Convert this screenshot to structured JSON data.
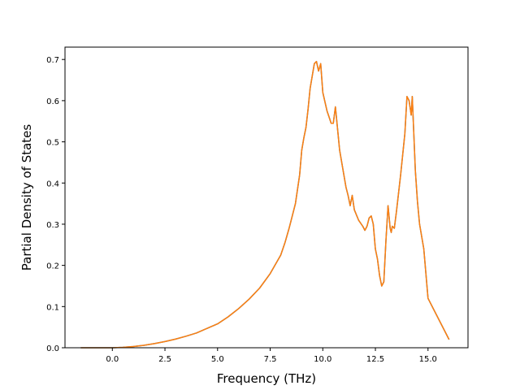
{
  "chart_data": {
    "type": "line",
    "title": "",
    "xlabel": "Frequency (THz)",
    "ylabel": "Partial Density of States",
    "xlim": [
      -2.25,
      16.9
    ],
    "ylim": [
      0.0,
      0.73
    ],
    "x_ticks": [
      "0.0",
      "2.5",
      "5.0",
      "7.5",
      "10.0",
      "12.5",
      "15.0"
    ],
    "y_ticks": [
      "0.0",
      "0.1",
      "0.2",
      "0.3",
      "0.4",
      "0.5",
      "0.6",
      "0.7"
    ],
    "grid": false,
    "legend": null,
    "colors": {
      "series": [
        "#1f77b4",
        "#ff7f0e"
      ]
    },
    "series": [
      {
        "x": [
          -1.5,
          0.0,
          0.5,
          1.0,
          1.5,
          2.0,
          2.5,
          3.0,
          3.5,
          4.0,
          4.5,
          5.0,
          5.5,
          6.0,
          6.5,
          7.0,
          7.5,
          8.0,
          8.2,
          8.4,
          8.5,
          8.7,
          8.9,
          9.0,
          9.1,
          9.2,
          9.3,
          9.4,
          9.5,
          9.6,
          9.7,
          9.8,
          9.9,
          10.0,
          10.2,
          10.3,
          10.4,
          10.5,
          10.6,
          10.8,
          11.0,
          11.1,
          11.2,
          11.3,
          11.4,
          11.5,
          11.7,
          11.9,
          12.0,
          12.1,
          12.2,
          12.3,
          12.4,
          12.5,
          12.6,
          12.7,
          12.8,
          12.9,
          13.0,
          13.1,
          13.2,
          13.25,
          13.3,
          13.4,
          13.5,
          13.7,
          13.9,
          14.0,
          14.1,
          14.2,
          14.25,
          14.4,
          14.5,
          14.6,
          14.8,
          15.0,
          16.0
        ],
        "y": [
          0.0,
          0.0,
          0.001,
          0.003,
          0.006,
          0.01,
          0.015,
          0.021,
          0.028,
          0.036,
          0.047,
          0.058,
          0.075,
          0.095,
          0.118,
          0.145,
          0.18,
          0.225,
          0.255,
          0.29,
          0.31,
          0.35,
          0.42,
          0.48,
          0.51,
          0.535,
          0.58,
          0.63,
          0.66,
          0.69,
          0.695,
          0.672,
          0.69,
          0.62,
          0.575,
          0.56,
          0.545,
          0.545,
          0.585,
          0.48,
          0.42,
          0.39,
          0.37,
          0.345,
          0.37,
          0.335,
          0.31,
          0.295,
          0.285,
          0.295,
          0.315,
          0.32,
          0.3,
          0.24,
          0.215,
          0.175,
          0.15,
          0.16,
          0.26,
          0.345,
          0.29,
          0.28,
          0.295,
          0.29,
          0.33,
          0.42,
          0.52,
          0.61,
          0.6,
          0.565,
          0.61,
          0.43,
          0.355,
          0.3,
          0.24,
          0.12,
          0.02
        ]
      }
    ]
  }
}
